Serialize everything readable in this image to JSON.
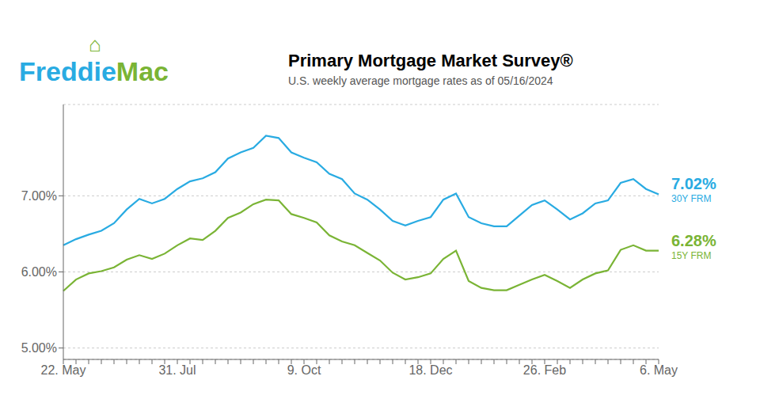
{
  "chart_data": {
    "type": "line",
    "title": "Primary Mortgage Market Survey®",
    "subtitle": "U.S. weekly average mortgage rates as of 05/16/2024",
    "logo": [
      {
        "text": "Freddie",
        "color": "#29abe2"
      },
      {
        "text": "Mac",
        "color": "#7ab435"
      },
      {
        "text": "⌂",
        "color": "#7ab435"
      }
    ],
    "categories": [
      "22. May",
      null,
      null,
      null,
      null,
      null,
      null,
      null,
      null,
      "31. Jul",
      null,
      null,
      null,
      null,
      null,
      null,
      null,
      null,
      null,
      "9. Oct",
      null,
      null,
      null,
      null,
      null,
      null,
      null,
      null,
      null,
      "18. Dec",
      null,
      null,
      null,
      null,
      null,
      null,
      null,
      null,
      "26. Feb",
      null,
      null,
      null,
      null,
      null,
      null,
      null,
      null,
      "6. May"
    ],
    "series": [
      {
        "name": "30Y FRM",
        "color": "#29abe2",
        "values": [
          6.35,
          6.43,
          6.49,
          6.54,
          6.64,
          6.82,
          6.96,
          6.9,
          6.96,
          7.09,
          7.19,
          7.23,
          7.31,
          7.49,
          7.57,
          7.63,
          7.79,
          7.76,
          7.57,
          7.5,
          7.44,
          7.29,
          7.22,
          7.03,
          6.95,
          6.82,
          6.67,
          6.61,
          6.67,
          6.72,
          6.95,
          7.03,
          6.72,
          6.64,
          6.6,
          6.6,
          6.74,
          6.88,
          6.94,
          6.82,
          6.69,
          6.77,
          6.9,
          6.94,
          7.17,
          7.22,
          7.09,
          7.02
        ]
      },
      {
        "name": "15Y FRM",
        "color": "#7ab435",
        "values": [
          5.75,
          5.9,
          5.98,
          6.01,
          6.06,
          6.16,
          6.22,
          6.17,
          6.24,
          6.35,
          6.44,
          6.42,
          6.54,
          6.71,
          6.78,
          6.89,
          6.95,
          6.94,
          6.76,
          6.71,
          6.65,
          6.48,
          6.4,
          6.35,
          6.25,
          6.15,
          5.99,
          5.9,
          5.93,
          5.98,
          6.17,
          6.28,
          5.88,
          5.79,
          5.76,
          5.76,
          5.83,
          5.9,
          5.96,
          5.88,
          5.79,
          5.9,
          5.98,
          6.02,
          6.29,
          6.35,
          6.28,
          6.28
        ]
      }
    ],
    "annotations": [
      {
        "text": "7.02%",
        "subtext": "30Y FRM",
        "y": 7.02,
        "color": "#29abe2"
      },
      {
        "text": "6.28%",
        "subtext": "15Y FRM",
        "y": 6.28,
        "color": "#7ab435"
      }
    ],
    "ylim": [
      4.85,
      8.2
    ],
    "yticks": [
      {
        "value": 5.0,
        "label": "5.00%"
      },
      {
        "value": 6.0,
        "label": "6.00%"
      },
      {
        "value": 7.0,
        "label": "7.00%"
      }
    ],
    "grid": true
  }
}
